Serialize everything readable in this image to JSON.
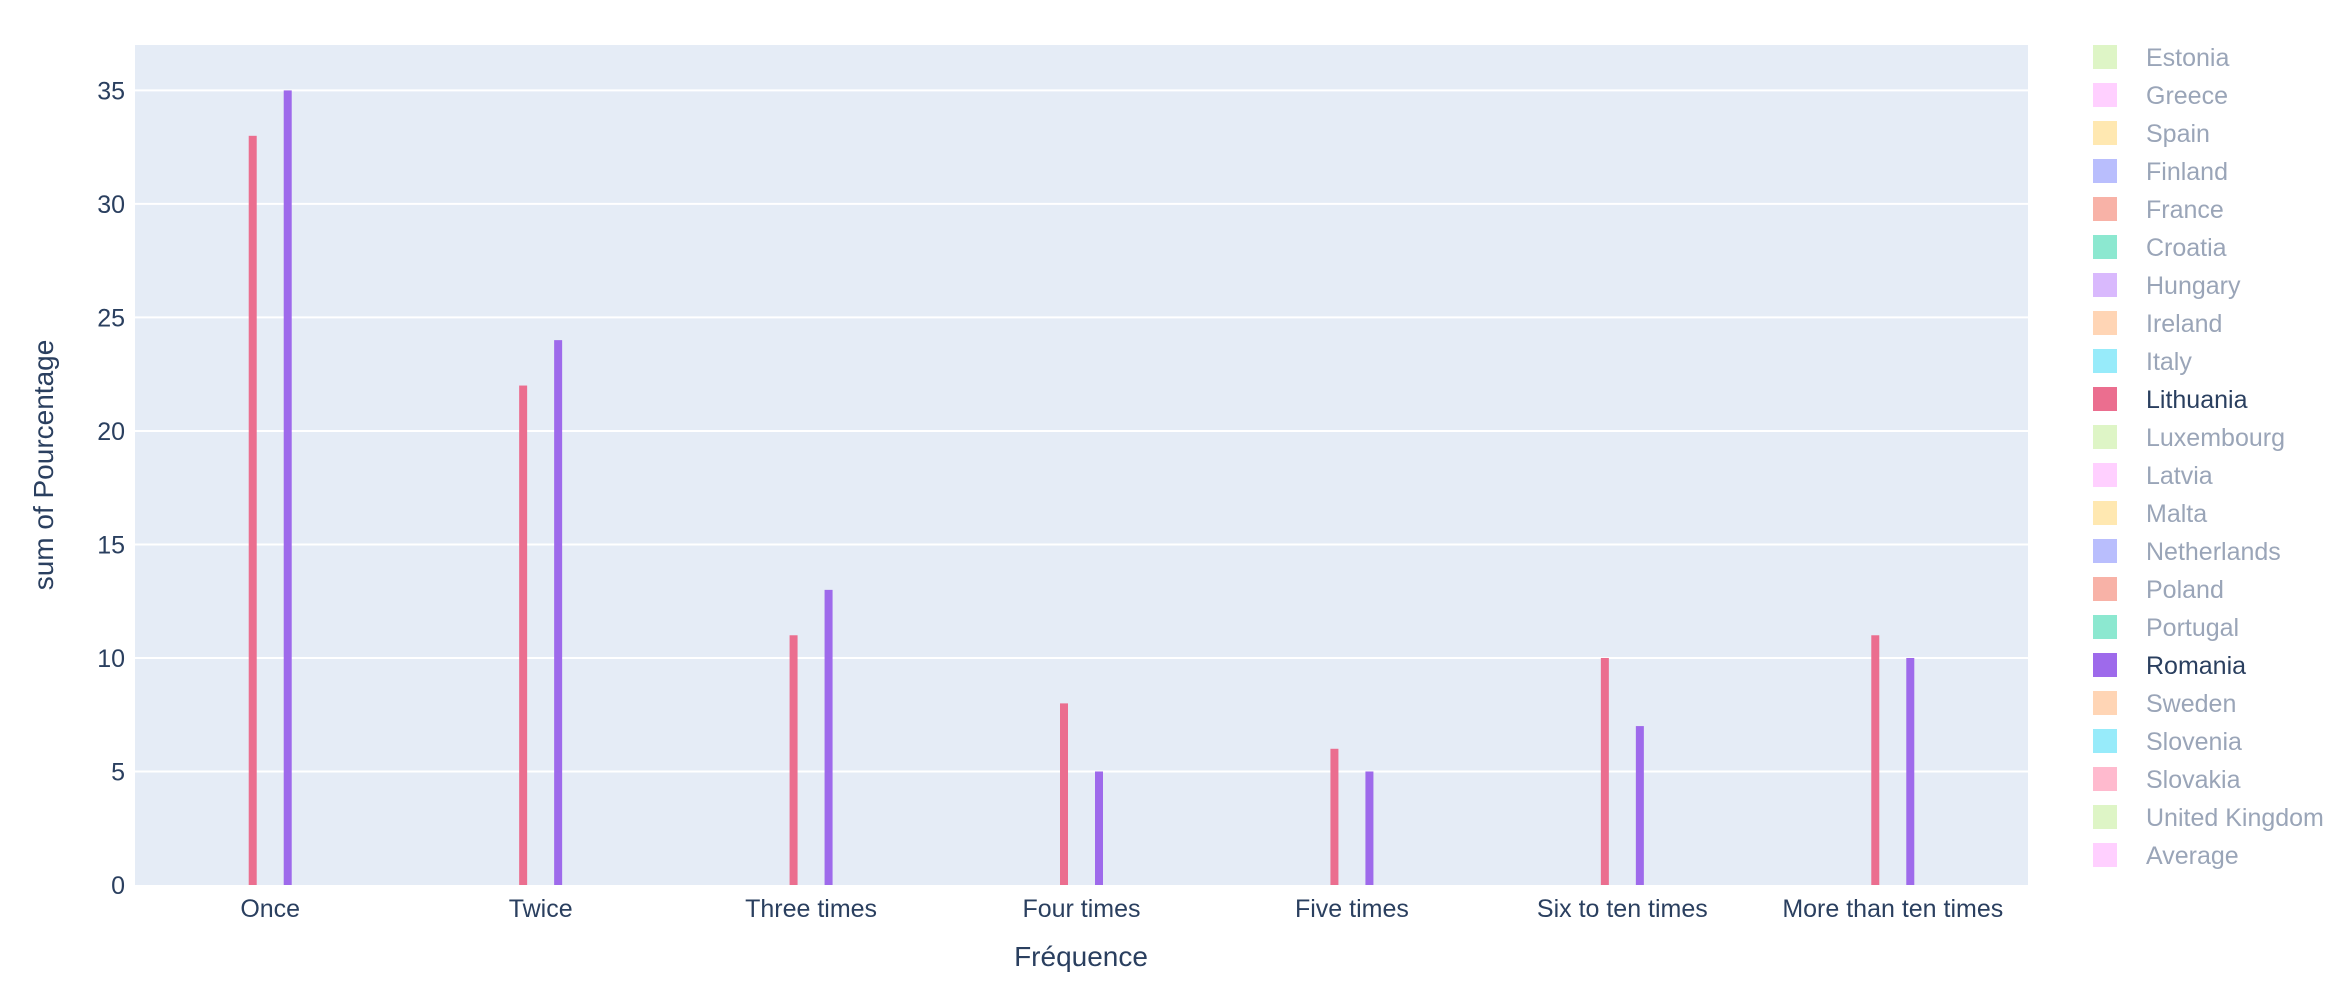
{
  "chart_data": {
    "type": "bar",
    "title": "",
    "xlabel": "Fréquence",
    "ylabel": "sum of Pourcentage",
    "ylim": [
      0,
      37
    ],
    "yticks": [
      0,
      5,
      10,
      15,
      20,
      25,
      30,
      35
    ],
    "grid": true,
    "legend_position": "right",
    "categories": [
      "Once",
      "Twice",
      "Three times",
      "Four times",
      "Five times",
      "Six to ten times",
      "More than ten times"
    ],
    "legend": [
      {
        "name": "Estonia",
        "color": "#B6E880",
        "visible": false
      },
      {
        "name": "Greece",
        "color": "#FF97FF",
        "visible": false
      },
      {
        "name": "Spain",
        "color": "#FECB52",
        "visible": false
      },
      {
        "name": "Finland",
        "color": "#636EFA",
        "visible": false
      },
      {
        "name": "France",
        "color": "#EF553B",
        "visible": false
      },
      {
        "name": "Croatia",
        "color": "#00CC96",
        "visible": false
      },
      {
        "name": "Hungary",
        "color": "#AB63FA",
        "visible": false
      },
      {
        "name": "Ireland",
        "color": "#FFA15A",
        "visible": false
      },
      {
        "name": "Italy",
        "color": "#19D3F3",
        "visible": false
      },
      {
        "name": "Lithuania",
        "color": "#EB6E8F",
        "visible": true
      },
      {
        "name": "Luxembourg",
        "color": "#B6E880",
        "visible": false
      },
      {
        "name": "Latvia",
        "color": "#FF97FF",
        "visible": false
      },
      {
        "name": "Malta",
        "color": "#FECB52",
        "visible": false
      },
      {
        "name": "Netherlands",
        "color": "#636EFA",
        "visible": false
      },
      {
        "name": "Poland",
        "color": "#EF553B",
        "visible": false
      },
      {
        "name": "Portugal",
        "color": "#00CC96",
        "visible": false
      },
      {
        "name": "Romania",
        "color": "#9E6AEB",
        "visible": true
      },
      {
        "name": "Sweden",
        "color": "#FFA15A",
        "visible": false
      },
      {
        "name": "Slovenia",
        "color": "#19D3F3",
        "visible": false
      },
      {
        "name": "Slovakia",
        "color": "#FF6692",
        "visible": false
      },
      {
        "name": "United Kingdom",
        "color": "#B6E880",
        "visible": false
      },
      {
        "name": "Average",
        "color": "#FF97FF",
        "visible": false
      }
    ],
    "series": [
      {
        "name": "Lithuania",
        "color": "#EB6E8F",
        "values": [
          33,
          22,
          11,
          8,
          6,
          10,
          11
        ]
      },
      {
        "name": "Romania",
        "color": "#9E6AEB",
        "values": [
          35,
          24,
          13,
          5,
          5,
          7,
          10
        ]
      }
    ]
  }
}
